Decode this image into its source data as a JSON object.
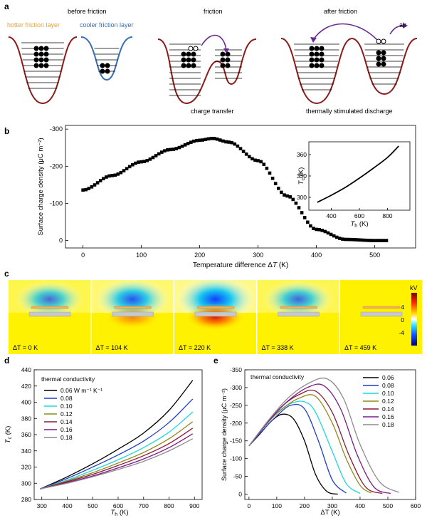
{
  "panel_a": {
    "letter": "a",
    "titles": [
      "before friction",
      "friction",
      "after friction"
    ],
    "legend_hot": "hotter friction layer",
    "legend_cool": "cooler friction layer",
    "air_label": "air",
    "caption_transfer": "charge transfer",
    "caption_discharge": "thermally stimulated discharge",
    "colors": {
      "hot": "#8b1a1a",
      "cool": "#3a6fb5",
      "hot_text": "#e8a23a",
      "arrow": "#6a2c91"
    }
  },
  "panel_b": {
    "letter": "b",
    "xlabel_prefix": "Temperature difference Δ",
    "xlabel_var": "T",
    "xlabel_suffix": " (K)",
    "ylabel": "Surface charge density (μC m⁻²)",
    "xticks": [
      "0",
      "100",
      "200",
      "300",
      "400",
      "500"
    ],
    "yticks": [
      "0",
      "-100",
      "-200",
      "-300"
    ],
    "inset": {
      "xlabel_var": "T",
      "xlabel_sub": "h",
      "xlabel_suffix": " (K)",
      "ylabel_var": "T",
      "ylabel_sub": "c",
      "ylabel_suffix": " (K)",
      "xticks": [
        "400",
        "600",
        "800"
      ],
      "yticks": [
        "300",
        "330",
        "360"
      ]
    }
  },
  "panel_c": {
    "letter": "c",
    "colorbar_unit": "kV",
    "colorbar_ticks": [
      "4",
      "0",
      "-4"
    ],
    "labels": [
      "ΔT = 0 K",
      "ΔT = 104 K",
      "ΔT = 220 K",
      "ΔT = 338 K",
      "ΔT = 459 K"
    ],
    "field_strength": [
      0.55,
      0.8,
      1.0,
      0.6,
      0.0
    ]
  },
  "panel_d": {
    "letter": "d",
    "legend_title": "thermal conductivity",
    "legend_entries": [
      "0.06 W m⁻¹ K⁻¹",
      "0.08",
      "0.10",
      "0.12",
      "0.14",
      "0.16",
      "0.18"
    ],
    "xlabel_var": "T",
    "xlabel_sub": "h",
    "xlabel_suffix": " (K)",
    "ylabel_var": "T",
    "ylabel_sub": "c",
    "ylabel_suffix": " (K)",
    "xticks": [
      "300",
      "400",
      "500",
      "600",
      "700",
      "800",
      "900"
    ],
    "yticks": [
      "280",
      "300",
      "320",
      "340",
      "360",
      "380",
      "400",
      "420",
      "440"
    ]
  },
  "panel_e": {
    "letter": "e",
    "legend_title": "thermal conductivity",
    "legend_entries": [
      "0.06",
      "0.08",
      "0.10",
      "0.12",
      "0.14",
      "0.16",
      "0.18"
    ],
    "xlabel": "ΔT (K)",
    "ylabel": "Surface charge density (μC m⁻²)",
    "xticks": [
      "0",
      "100",
      "200",
      "300",
      "400",
      "500",
      "600"
    ],
    "yticks": [
      "0",
      "-50",
      "-100",
      "-150",
      "-200",
      "-250",
      "-300",
      "-350"
    ]
  },
  "series_colors": [
    "#000000",
    "#1f3fbf",
    "#1fd6e0",
    "#8f8a1a",
    "#8a1a3a",
    "#7a1a8a",
    "#8c8c8c"
  ],
  "chart_data": [
    {
      "type": "scatter",
      "title": "",
      "xlabel": "Temperature difference ΔT (K)",
      "ylabel": "Surface charge density (μC m⁻²)",
      "xlim": [
        -30,
        570
      ],
      "ylim": [
        20,
        -310
      ],
      "series": [
        {
          "x": [
            0,
            50,
            100,
            150,
            200,
            222,
            250,
            300,
            350,
            400,
            450,
            500,
            520
          ],
          "y": [
            -136,
            -175,
            -212,
            -245,
            -270,
            -275,
            -265,
            -215,
            -120,
            -30,
            -3,
            0,
            0
          ]
        }
      ]
    },
    {
      "type": "line",
      "xlabel": "Th (K)",
      "ylabel": "Tc (K)",
      "xlim": [
        240,
        960
      ],
      "ylim": [
        282,
        378
      ],
      "series": [
        {
          "x": [
            300,
            400,
            500,
            600,
            700,
            800,
            880
          ],
          "y": [
            293,
            303,
            314,
            327,
            341,
            356,
            372
          ]
        }
      ]
    },
    {
      "type": "line",
      "xlabel": "Th (K)",
      "ylabel": "Tc (K)",
      "xlim": [
        270,
        930
      ],
      "ylim": [
        280,
        440
      ],
      "series": [
        {
          "name": "0.06 W m⁻¹ K⁻¹",
          "x": [
            293,
            400,
            500,
            600,
            700,
            800,
            893
          ],
          "y": [
            293,
            308,
            324,
            342,
            362,
            390,
            427
          ]
        },
        {
          "name": "0.08",
          "x": [
            293,
            400,
            500,
            600,
            700,
            800,
            893
          ],
          "y": [
            293,
            306,
            320,
            335,
            352,
            375,
            404
          ]
        },
        {
          "name": "0.10",
          "x": [
            293,
            400,
            500,
            600,
            700,
            800,
            893
          ],
          "y": [
            293,
            304,
            316,
            329,
            344,
            363,
            388
          ]
        },
        {
          "name": "0.12",
          "x": [
            293,
            400,
            500,
            600,
            700,
            800,
            893
          ],
          "y": [
            293,
            303,
            313,
            325,
            338,
            355,
            376
          ]
        },
        {
          "name": "0.14",
          "x": [
            293,
            400,
            500,
            600,
            700,
            800,
            893
          ],
          "y": [
            293,
            302,
            311,
            322,
            334,
            349,
            368
          ]
        },
        {
          "name": "0.16",
          "x": [
            293,
            400,
            500,
            600,
            700,
            800,
            893
          ],
          "y": [
            293,
            301,
            309,
            319,
            330,
            344,
            361
          ]
        },
        {
          "name": "0.18",
          "x": [
            293,
            400,
            500,
            600,
            700,
            800,
            893
          ],
          "y": [
            293,
            300,
            308,
            317,
            327,
            340,
            355
          ]
        }
      ]
    },
    {
      "type": "line",
      "xlabel": "ΔT (K)",
      "ylabel": "Surface charge density (μC m⁻²)",
      "xlim": [
        -15,
        600
      ],
      "ylim": [
        15,
        -350
      ],
      "series": [
        {
          "name": "0.06",
          "x": [
            0,
            40,
            80,
            120,
            160,
            200,
            240,
            280,
            320
          ],
          "y": [
            -136,
            -170,
            -205,
            -225,
            -212,
            -150,
            -55,
            -8,
            0
          ]
        },
        {
          "name": "0.08",
          "x": [
            0,
            50,
            100,
            150,
            200,
            250,
            300,
            350
          ],
          "y": [
            -136,
            -180,
            -220,
            -250,
            -240,
            -150,
            -40,
            -3
          ]
        },
        {
          "name": "0.10",
          "x": [
            0,
            50,
            100,
            150,
            200,
            240,
            300,
            350,
            400
          ],
          "y": [
            -136,
            -185,
            -228,
            -255,
            -260,
            -230,
            -120,
            -30,
            -2
          ]
        },
        {
          "name": "0.12",
          "x": [
            0,
            60,
            120,
            180,
            240,
            300,
            350,
            400,
            440
          ],
          "y": [
            -136,
            -195,
            -240,
            -270,
            -275,
            -200,
            -100,
            -25,
            -3
          ]
        },
        {
          "name": "0.14",
          "x": [
            0,
            60,
            120,
            180,
            240,
            300,
            360,
            420,
            480
          ],
          "y": [
            -136,
            -195,
            -248,
            -280,
            -290,
            -230,
            -110,
            -20,
            -2
          ]
        },
        {
          "name": "0.16",
          "x": [
            0,
            70,
            140,
            210,
            270,
            330,
            390,
            450,
            510
          ],
          "y": [
            -136,
            -205,
            -262,
            -300,
            -305,
            -240,
            -110,
            -20,
            -2
          ]
        },
        {
          "name": "0.18",
          "x": [
            0,
            70,
            140,
            210,
            280,
            340,
            400,
            470,
            540
          ],
          "y": [
            -136,
            -208,
            -270,
            -310,
            -325,
            -270,
            -140,
            -35,
            -5
          ]
        }
      ]
    }
  ]
}
